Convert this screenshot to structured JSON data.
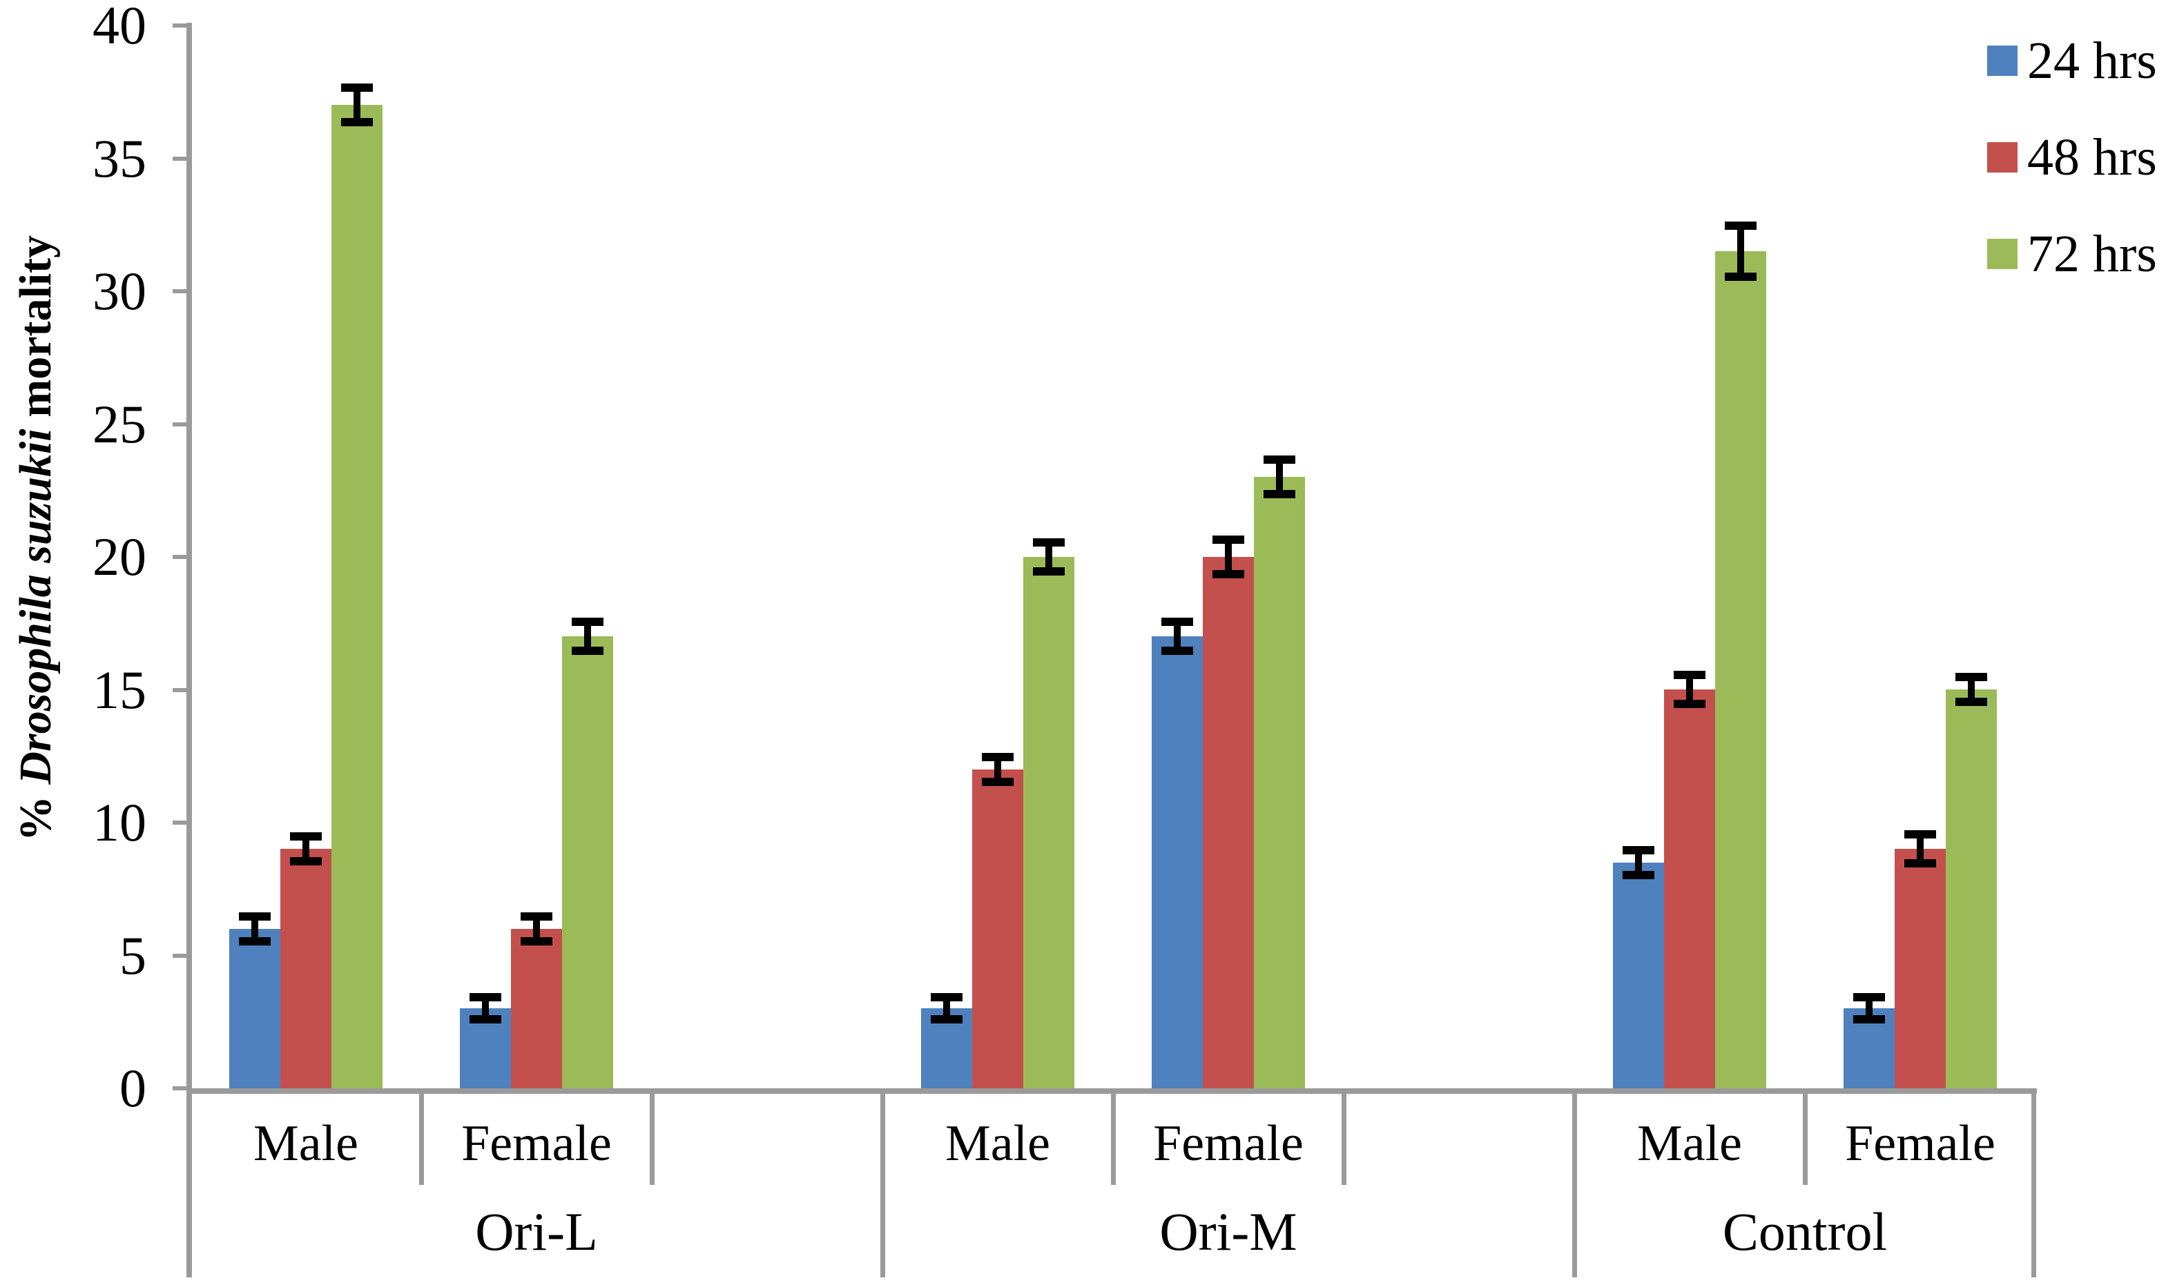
{
  "chart_data": {
    "type": "bar",
    "title": "",
    "ylabel_prefix": "% ",
    "ylabel_italic": "Drosophila suzukii",
    "ylabel_suffix": " mortality",
    "ylim": [
      0,
      40
    ],
    "yticks": [
      0,
      5,
      10,
      15,
      20,
      25,
      30,
      35,
      40
    ],
    "groups": [
      "Ori-L",
      "Ori-M",
      "Control"
    ],
    "categories": [
      "Male",
      "Female"
    ],
    "series": [
      {
        "name": "24 hrs",
        "color": "#4E81BD",
        "values": [
          [
            6,
            3
          ],
          [
            3,
            17
          ],
          [
            8.5,
            3
          ]
        ],
        "errors": [
          [
            0.3,
            0.25
          ],
          [
            0.25,
            0.4
          ],
          [
            0.3,
            0.2
          ]
        ]
      },
      {
        "name": "48 hrs",
        "color": "#C4504E",
        "values": [
          [
            9,
            6
          ],
          [
            12,
            20
          ],
          [
            15,
            9
          ]
        ],
        "errors": [
          [
            0.3,
            0.3
          ],
          [
            0.3,
            0.5
          ],
          [
            0.4,
            0.4
          ]
        ]
      },
      {
        "name": "72 hrs",
        "color": "#9BBB59",
        "values": [
          [
            37,
            17
          ],
          [
            20,
            23
          ],
          [
            31.5,
            15
          ]
        ],
        "errors": [
          [
            0.5,
            0.4
          ],
          [
            0.4,
            0.5
          ],
          [
            0.8,
            0.3
          ]
        ]
      }
    ],
    "legend_position": "top-right",
    "legend_labels": [
      "24 hrs",
      "48 hrs",
      "72 hrs"
    ],
    "axis_color": "#9A9A9A",
    "error_bar_color": "#000000",
    "grid": false
  }
}
